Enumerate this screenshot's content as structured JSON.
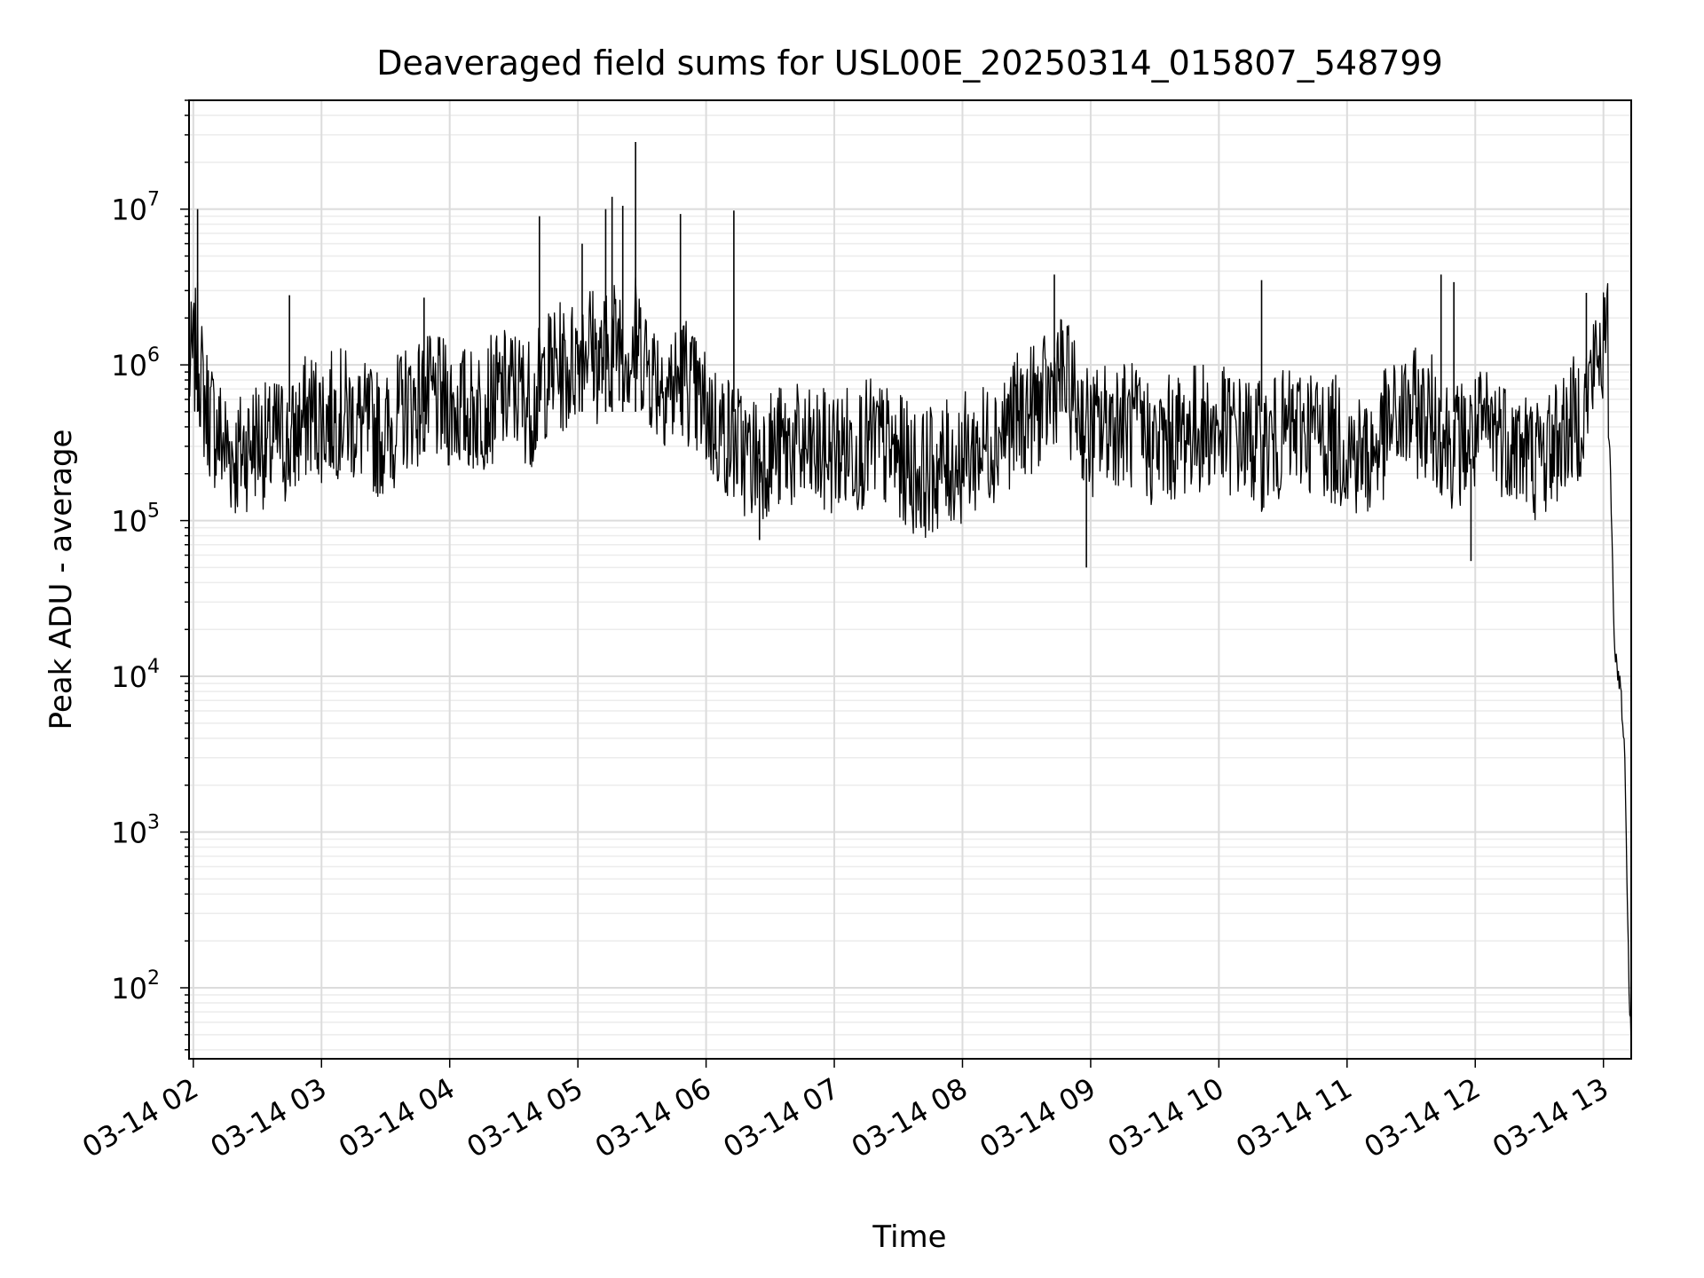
{
  "chart_data": {
    "type": "line",
    "title": "Deaveraged field sums for USL00E_20250314_015807_548799",
    "xlabel": "Time",
    "ylabel": "Peak ADU - average",
    "yscale": "log",
    "ylim": [
      35,
      50000000
    ],
    "xlim": [
      "03-14 01:58",
      "03-14 13:13"
    ],
    "grid": "on (major and minor)",
    "line_color": "#000000",
    "x_ticks": [
      "03-14 02",
      "03-14 03",
      "03-14 04",
      "03-14 05",
      "03-14 06",
      "03-14 07",
      "03-14 08",
      "03-14 09",
      "03-14 10",
      "03-14 11",
      "03-14 12",
      "03-14 13"
    ],
    "y_ticks": [
      {
        "value": 100,
        "base": "10",
        "exp": "2"
      },
      {
        "value": 1000,
        "base": "10",
        "exp": "3"
      },
      {
        "value": 10000,
        "base": "10",
        "exp": "4"
      },
      {
        "value": 100000,
        "base": "10",
        "exp": "5"
      },
      {
        "value": 1000000,
        "base": "10",
        "exp": "6"
      },
      {
        "value": 10000000,
        "base": "10",
        "exp": "7"
      }
    ],
    "series": [
      {
        "x": [
          "03-14 01:58",
          "03-14 02:02",
          "03-14 02:05",
          "03-14 02:10",
          "03-14 02:15",
          "03-14 02:20",
          "03-14 02:25",
          "03-14 02:30",
          "03-14 02:35",
          "03-14 02:40",
          "03-14 02:45",
          "03-14 02:50",
          "03-14 02:55",
          "03-14 03:00",
          "03-14 03:10",
          "03-14 03:20",
          "03-14 03:30",
          "03-14 03:40",
          "03-14 03:50",
          "03-14 04:00",
          "03-14 04:10",
          "03-14 04:20",
          "03-14 04:30",
          "03-14 04:40",
          "03-14 04:43",
          "03-14 04:50",
          "03-14 04:55",
          "03-14 05:00",
          "03-14 05:05",
          "03-14 05:10",
          "03-14 05:15",
          "03-14 05:20",
          "03-14 05:25",
          "03-14 05:27",
          "03-14 05:35",
          "03-14 05:40",
          "03-14 05:45",
          "03-14 05:50",
          "03-14 05:55",
          "03-14 06:00",
          "03-14 06:05",
          "03-14 06:10",
          "03-14 06:15",
          "03-14 06:20",
          "03-14 06:30",
          "03-14 06:40",
          "03-14 06:50",
          "03-14 07:00",
          "03-14 07:10",
          "03-14 07:20",
          "03-14 07:30",
          "03-14 07:40",
          "03-14 07:50",
          "03-14 08:00",
          "03-14 08:10",
          "03-14 08:20",
          "03-14 08:30",
          "03-14 08:40",
          "03-14 08:45",
          "03-14 08:55",
          "03-14 09:00",
          "03-14 09:10",
          "03-14 09:20",
          "03-14 09:30",
          "03-14 09:40",
          "03-14 09:50",
          "03-14 10:00",
          "03-14 10:10",
          "03-14 10:20",
          "03-14 10:30",
          "03-14 10:40",
          "03-14 10:50",
          "03-14 11:00",
          "03-14 11:10",
          "03-14 11:20",
          "03-14 11:30",
          "03-14 11:40",
          "03-14 11:50",
          "03-14 12:00",
          "03-14 12:10",
          "03-14 12:20",
          "03-14 12:30",
          "03-14 12:40",
          "03-14 12:50",
          "03-14 12:55",
          "03-14 13:00",
          "03-14 13:02",
          "03-14 13:03",
          "03-14 13:05",
          "03-14 13:06",
          "03-14 13:07",
          "03-14 13:08",
          "03-14 13:10",
          "03-14 13:12",
          "03-14 13:13"
        ],
        "values": [
          900000,
          1300000,
          600000,
          400000,
          300000,
          250000,
          300000,
          350000,
          280000,
          350000,
          300000,
          400000,
          500000,
          450000,
          500000,
          400000,
          350000,
          550000,
          600000,
          550000,
          500000,
          600000,
          700000,
          550000,
          800000,
          1000000,
          900000,
          1200000,
          1500000,
          1000000,
          1300000,
          1600000,
          1100000,
          1500000,
          900000,
          800000,
          700000,
          900000,
          600000,
          500000,
          400000,
          350000,
          300000,
          250000,
          280000,
          300000,
          260000,
          280000,
          300000,
          320000,
          250000,
          200000,
          220000,
          250000,
          300000,
          400000,
          500000,
          600000,
          900000,
          500000,
          350000,
          450000,
          400000,
          300000,
          350000,
          400000,
          380000,
          350000,
          300000,
          350000,
          400000,
          350000,
          300000,
          250000,
          400000,
          500000,
          450000,
          300000,
          350000,
          400000,
          300000,
          250000,
          350000,
          500000,
          900000,
          1400000,
          1300000,
          300000,
          20000,
          12000,
          10000,
          9000,
          3000,
          100,
          40
        ]
      }
    ],
    "spikes": [
      {
        "x": "03-14 02:02",
        "y": 10000000
      },
      {
        "x": "03-14 02:45",
        "y": 2800000
      },
      {
        "x": "03-14 03:48",
        "y": 2700000
      },
      {
        "x": "03-14 04:42",
        "y": 9000000
      },
      {
        "x": "03-14 05:02",
        "y": 6000000
      },
      {
        "x": "03-14 05:13",
        "y": 10000000
      },
      {
        "x": "03-14 05:16",
        "y": 12000000
      },
      {
        "x": "03-14 05:21",
        "y": 10500000
      },
      {
        "x": "03-14 05:27",
        "y": 27000000
      },
      {
        "x": "03-14 05:48",
        "y": 9300000
      },
      {
        "x": "03-14 06:13",
        "y": 9800000
      },
      {
        "x": "03-14 08:43",
        "y": 3800000
      },
      {
        "x": "03-14 10:20",
        "y": 3500000
      },
      {
        "x": "03-14 11:44",
        "y": 3800000
      },
      {
        "x": "03-14 11:50",
        "y": 3400000
      },
      {
        "x": "03-14 12:52",
        "y": 2900000
      },
      {
        "x": "03-14 08:58",
        "y": 50000
      },
      {
        "x": "03-14 11:58",
        "y": 55000
      },
      {
        "x": "03-14 06:25",
        "y": 75000
      }
    ]
  }
}
